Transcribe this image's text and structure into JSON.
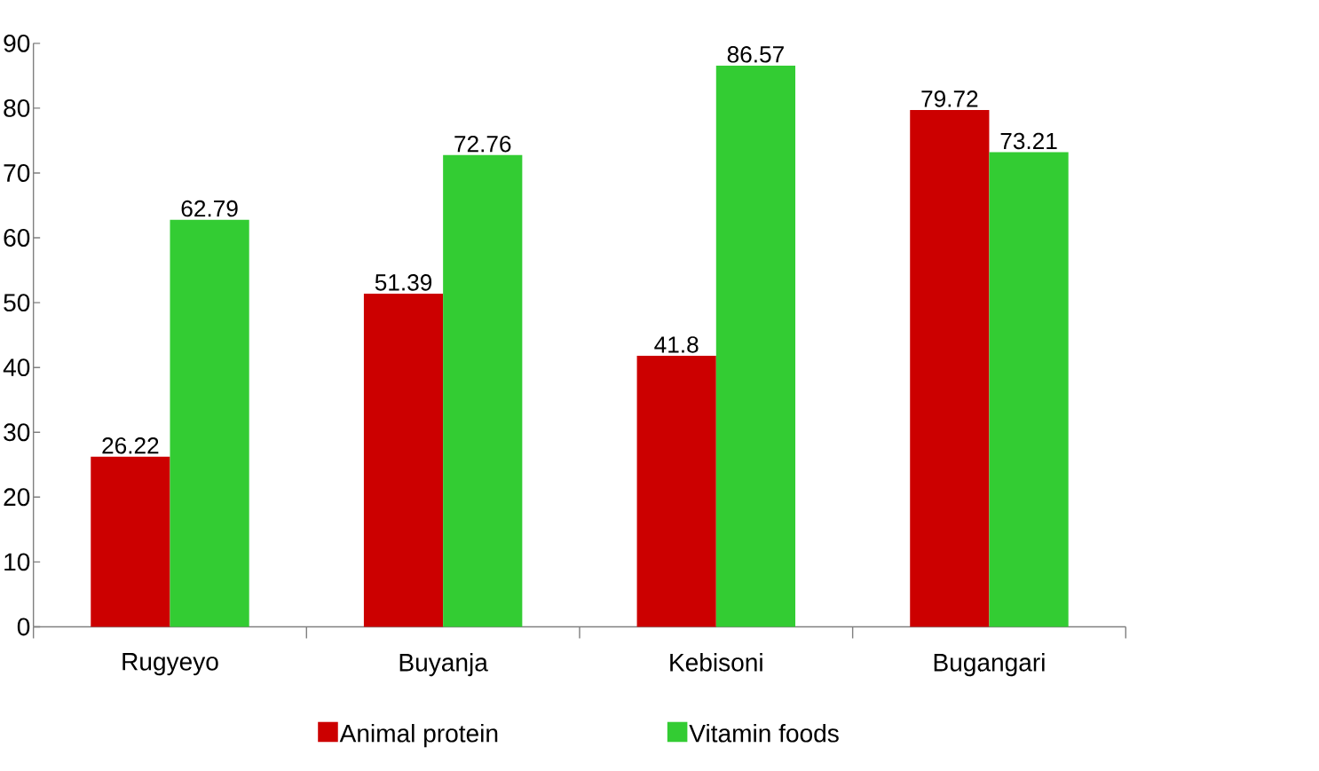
{
  "chart_data": {
    "type": "bar",
    "categories": [
      "Rugyeyo",
      "Buyanja",
      "Kebisoni",
      "Bugangari"
    ],
    "series": [
      {
        "name": "Animal protein",
        "color": "#cc0000",
        "values": [
          26.22,
          51.39,
          41.8,
          79.72
        ]
      },
      {
        "name": "Vitamin foods",
        "color": "#33cc33",
        "values": [
          62.79,
          72.76,
          86.57,
          73.21
        ]
      }
    ],
    "ylim": [
      0,
      90
    ],
    "yticks": [
      0,
      10,
      20,
      30,
      40,
      50,
      60,
      70,
      80,
      90
    ],
    "data_labels": true,
    "legend": "bottom",
    "grid": false
  }
}
